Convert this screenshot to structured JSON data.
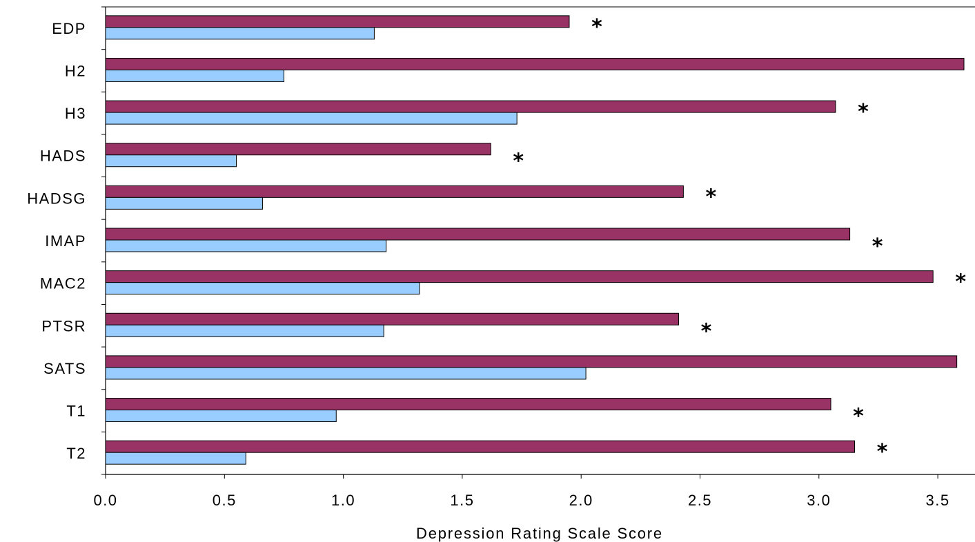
{
  "chart_data": {
    "type": "bar",
    "orientation": "horizontal",
    "categories": [
      "EDP",
      "H2",
      "H3",
      "HADS",
      "HADSG",
      "IMAP",
      "MAC2",
      "PTSR",
      "SATS",
      "T1",
      "T2"
    ],
    "series": [
      {
        "color": "#993366",
        "values": [
          1.95,
          3.61,
          3.07,
          1.62,
          2.43,
          3.13,
          3.48,
          2.41,
          3.58,
          3.05,
          3.15
        ]
      },
      {
        "color": "#99ccff",
        "values": [
          1.13,
          0.75,
          1.73,
          0.55,
          0.66,
          1.18,
          1.32,
          1.17,
          2.02,
          0.97,
          0.59
        ]
      }
    ],
    "significance_marker": "*",
    "significant": [
      true,
      true,
      true,
      true,
      true,
      true,
      true,
      true,
      true,
      true,
      true
    ],
    "xlabel": "Depression Rating Scale Score",
    "ylabel": "",
    "title": "",
    "xlim": [
      0.0,
      3.67
    ],
    "x_ticks": [
      "0.0",
      "0.5",
      "1.0",
      "1.5",
      "2.0",
      "2.5",
      "3.0",
      "3.5"
    ],
    "grid": false,
    "legend": "none"
  }
}
